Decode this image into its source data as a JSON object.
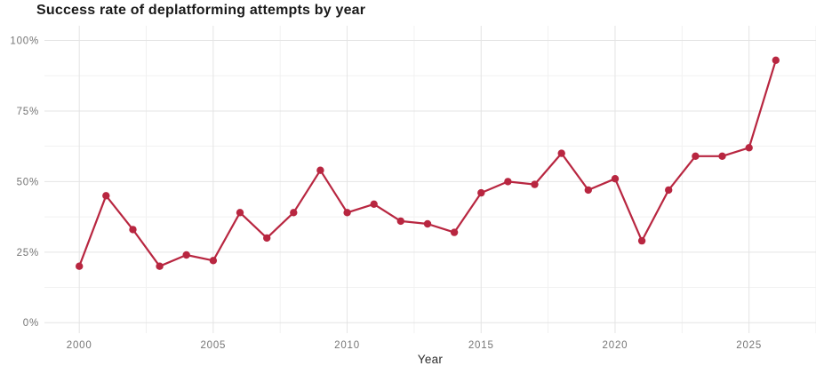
{
  "chart_data": {
    "type": "line",
    "title": "Success rate of deplatforming attempts by year",
    "xlabel": "Year",
    "ylabel": "",
    "series_name": "Success rate of deplatforming attempts",
    "x": [
      2000,
      2001,
      2002,
      2003,
      2004,
      2005,
      2006,
      2007,
      2008,
      2009,
      2010,
      2011,
      2012,
      2013,
      2014,
      2015,
      2016,
      2017,
      2018,
      2019,
      2020,
      2021,
      2022,
      2023,
      2024,
      2025,
      2026
    ],
    "values": [
      20,
      45,
      33,
      20,
      24,
      22,
      39,
      30,
      39,
      54,
      39,
      42,
      36,
      35,
      32,
      46,
      50,
      49,
      60,
      47,
      51,
      29,
      47,
      59,
      59,
      62,
      93
    ],
    "unit": "%",
    "x_ticks": [
      2000,
      2005,
      2010,
      2015,
      2020,
      2025
    ],
    "x_tick_labels": [
      "2000",
      "2005",
      "2010",
      "2015",
      "2020",
      "2025"
    ],
    "x_minor_ticks": [
      2002.5,
      2007.5,
      2012.5,
      2017.5,
      2022.5,
      2027.5
    ],
    "y_ticks": [
      0,
      25,
      50,
      75,
      100
    ],
    "y_tick_labels": [
      "0%",
      "25%",
      "50%",
      "75%",
      "100%"
    ],
    "y_minor_ticks": [
      12.5,
      37.5,
      62.5,
      87.5
    ],
    "xlim": [
      1998.7,
      2027.5
    ],
    "ylim": [
      -3.7,
      105.2
    ],
    "grid": true,
    "legend": false,
    "marker": "circle",
    "colors": {
      "line": "#b82640",
      "marker": "#b82640",
      "grid_major": "#e4e4e4",
      "grid_minor": "#f1f1f1",
      "tick_label": "#757575",
      "title": "#1a1a1a",
      "axis_label": "#2e2e2e",
      "background": "#ffffff"
    }
  }
}
